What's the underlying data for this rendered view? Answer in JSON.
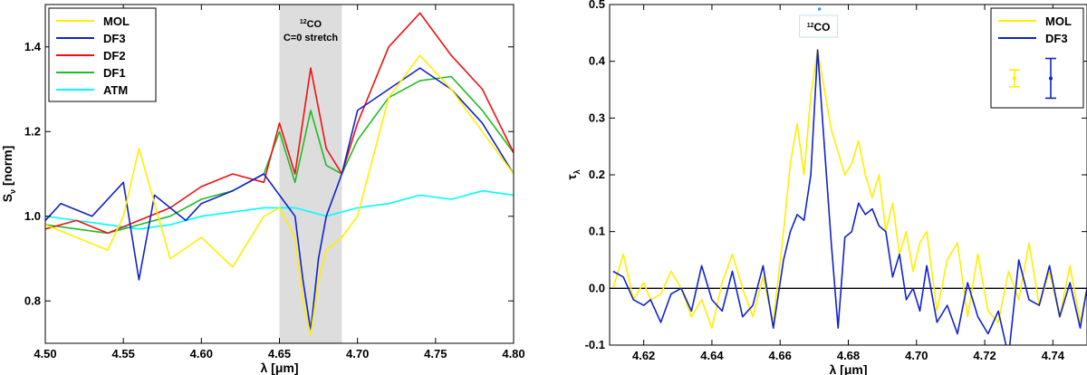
{
  "chart_data": [
    {
      "type": "line",
      "xlabel": "λ [μm]",
      "ylabel": "S",
      "ylabel_sub": "ν",
      "ylabel_suffix": " [norm]",
      "xlim": [
        4.5,
        4.8
      ],
      "ylim": [
        0.7,
        1.5
      ],
      "xticks": [
        4.5,
        4.55,
        4.6,
        4.65,
        4.7,
        4.75,
        4.8
      ],
      "xticklabels": [
        "4.50",
        "4.55",
        "4.60",
        "4.65",
        "4.70",
        "4.75",
        "4.80"
      ],
      "yticks": [
        0.8,
        1.0,
        1.2,
        1.4
      ],
      "yticklabels": [
        "0.8",
        "1.0",
        "1.2",
        "1.4"
      ],
      "legend_position": "top-left",
      "band": {
        "x0": 4.65,
        "x1": 4.69,
        "color": "#dddddd",
        "label_sup": "12",
        "label_main": "CO",
        "label_line2": "C=0 stretch"
      },
      "series": [
        {
          "name": "ATM",
          "color": "#00ffff",
          "x": [
            4.5,
            4.52,
            4.54,
            4.56,
            4.58,
            4.6,
            4.62,
            4.64,
            4.66,
            4.68,
            4.7,
            4.72,
            4.74,
            4.76,
            4.78,
            4.8
          ],
          "y": [
            1.0,
            0.99,
            0.98,
            0.97,
            0.98,
            1.0,
            1.01,
            1.02,
            1.02,
            1.0,
            1.02,
            1.03,
            1.05,
            1.04,
            1.06,
            1.05
          ]
        },
        {
          "name": "DF1",
          "color": "#22bb22",
          "x": [
            4.5,
            4.52,
            4.54,
            4.56,
            4.58,
            4.6,
            4.62,
            4.64,
            4.65,
            4.66,
            4.67,
            4.68,
            4.69,
            4.7,
            4.72,
            4.74,
            4.76,
            4.78,
            4.8
          ],
          "y": [
            0.98,
            0.97,
            0.96,
            0.98,
            1.0,
            1.04,
            1.06,
            1.1,
            1.2,
            1.08,
            1.25,
            1.12,
            1.1,
            1.18,
            1.28,
            1.32,
            1.33,
            1.25,
            1.15
          ]
        },
        {
          "name": "DF2",
          "color": "#ee1111",
          "x": [
            4.5,
            4.52,
            4.54,
            4.56,
            4.58,
            4.6,
            4.62,
            4.64,
            4.65,
            4.66,
            4.67,
            4.68,
            4.69,
            4.7,
            4.72,
            4.74,
            4.76,
            4.78,
            4.8
          ],
          "y": [
            0.97,
            0.99,
            0.96,
            0.99,
            1.02,
            1.07,
            1.1,
            1.08,
            1.22,
            1.1,
            1.35,
            1.16,
            1.1,
            1.22,
            1.4,
            1.48,
            1.38,
            1.3,
            1.15
          ]
        },
        {
          "name": "DF3",
          "color": "#1122cc",
          "x": [
            4.5,
            4.51,
            4.53,
            4.55,
            4.56,
            4.57,
            4.59,
            4.6,
            4.62,
            4.64,
            4.65,
            4.66,
            4.665,
            4.67,
            4.675,
            4.68,
            4.69,
            4.7,
            4.72,
            4.74,
            4.76,
            4.78,
            4.8
          ],
          "y": [
            0.99,
            1.03,
            1.0,
            1.08,
            0.85,
            1.05,
            0.99,
            1.03,
            1.06,
            1.1,
            1.05,
            1.0,
            0.85,
            0.73,
            0.9,
            1.0,
            1.1,
            1.25,
            1.3,
            1.35,
            1.3,
            1.22,
            1.1
          ]
        },
        {
          "name": "MOL",
          "color": "#ffee00",
          "x": [
            4.5,
            4.52,
            4.54,
            4.55,
            4.56,
            4.58,
            4.6,
            4.62,
            4.64,
            4.65,
            4.66,
            4.665,
            4.67,
            4.675,
            4.68,
            4.69,
            4.7,
            4.72,
            4.74,
            4.76,
            4.78,
            4.8
          ],
          "y": [
            0.98,
            0.95,
            0.92,
            1.0,
            1.16,
            0.9,
            0.95,
            0.88,
            1.0,
            1.02,
            0.95,
            0.8,
            0.72,
            0.85,
            0.92,
            0.95,
            1.0,
            1.28,
            1.38,
            1.3,
            1.2,
            1.1
          ]
        }
      ]
    },
    {
      "type": "line",
      "xlabel": "λ [μm]",
      "ylabel": "τ",
      "ylabel_sub": "λ",
      "xlim": [
        4.61,
        4.75
      ],
      "ylim": [
        -0.1,
        0.5
      ],
      "xticks": [
        4.62,
        4.64,
        4.66,
        4.68,
        4.7,
        4.72,
        4.74
      ],
      "xticklabels": [
        "4.62",
        "4.64",
        "4.66",
        "4.68",
        "4.70",
        "4.72",
        "4.74"
      ],
      "yticks": [
        -0.1,
        0.0,
        0.1,
        0.2,
        0.3,
        0.4,
        0.5
      ],
      "yticklabels": [
        "-0.1",
        "0.0",
        "0.1",
        "0.2",
        "0.3",
        "0.4",
        "0.5"
      ],
      "legend_position": "top-right",
      "zero_line": 0,
      "label_box": {
        "x": 4.671,
        "y": 0.46,
        "sup": "12",
        "main": "CO"
      },
      "error_bars": [
        {
          "series": "MOL",
          "y": 0.37,
          "err": 0.015,
          "color": "#ffee00"
        },
        {
          "series": "DF3",
          "y": 0.37,
          "err": 0.035,
          "color": "#1122cc"
        }
      ],
      "series": [
        {
          "name": "MOL",
          "color": "#ffee00",
          "x": [
            4.611,
            4.614,
            4.617,
            4.62,
            4.622,
            4.625,
            4.628,
            4.631,
            4.634,
            4.637,
            4.64,
            4.643,
            4.646,
            4.649,
            4.652,
            4.655,
            4.658,
            4.661,
            4.663,
            4.665,
            4.667,
            4.669,
            4.671,
            4.673,
            4.675,
            4.677,
            4.679,
            4.681,
            4.683,
            4.685,
            4.687,
            4.689,
            4.691,
            4.693,
            4.695,
            4.697,
            4.699,
            4.701,
            4.703,
            4.706,
            4.709,
            4.712,
            4.715,
            4.718,
            4.721,
            4.724,
            4.727,
            4.73,
            4.733,
            4.736,
            4.739,
            4.742,
            4.745,
            4.748,
            4.75
          ],
          "y": [
            0.0,
            0.06,
            -0.02,
            0.01,
            -0.02,
            -0.01,
            0.03,
            0.0,
            -0.05,
            -0.02,
            -0.07,
            0.01,
            0.06,
            0.0,
            -0.05,
            0.02,
            -0.06,
            0.1,
            0.22,
            0.29,
            0.2,
            0.34,
            0.42,
            0.35,
            0.28,
            0.24,
            0.2,
            0.22,
            0.26,
            0.2,
            0.16,
            0.2,
            0.1,
            0.15,
            0.06,
            0.1,
            0.03,
            0.08,
            0.1,
            -0.04,
            0.05,
            0.08,
            -0.05,
            0.06,
            -0.04,
            -0.06,
            0.03,
            -0.02,
            0.08,
            -0.03,
            0.03,
            -0.05,
            0.04,
            -0.06,
            0.0
          ]
        },
        {
          "name": "DF3",
          "color": "#1122cc",
          "x": [
            4.611,
            4.614,
            4.617,
            4.62,
            4.622,
            4.625,
            4.628,
            4.631,
            4.634,
            4.637,
            4.64,
            4.643,
            4.646,
            4.649,
            4.652,
            4.655,
            4.658,
            4.661,
            4.663,
            4.665,
            4.667,
            4.669,
            4.671,
            4.673,
            4.675,
            4.677,
            4.679,
            4.681,
            4.683,
            4.685,
            4.687,
            4.689,
            4.691,
            4.693,
            4.695,
            4.697,
            4.699,
            4.701,
            4.703,
            4.706,
            4.709,
            4.712,
            4.715,
            4.718,
            4.721,
            4.724,
            4.727,
            4.73,
            4.733,
            4.736,
            4.739,
            4.742,
            4.745,
            4.748,
            4.75
          ],
          "y": [
            0.03,
            0.02,
            -0.02,
            -0.03,
            -0.02,
            -0.06,
            -0.01,
            0.0,
            -0.04,
            0.04,
            -0.02,
            -0.04,
            0.03,
            -0.05,
            -0.03,
            0.04,
            -0.07,
            0.05,
            0.1,
            0.13,
            0.12,
            0.2,
            0.42,
            0.25,
            0.08,
            -0.07,
            0.09,
            0.1,
            0.15,
            0.13,
            0.14,
            0.11,
            0.1,
            0.02,
            0.06,
            -0.02,
            0.0,
            -0.04,
            0.04,
            -0.06,
            -0.03,
            -0.08,
            0.01,
            -0.05,
            -0.08,
            -0.04,
            -0.12,
            0.05,
            -0.02,
            -0.03,
            0.04,
            -0.05,
            0.01,
            -0.07,
            0.0
          ]
        }
      ]
    }
  ]
}
